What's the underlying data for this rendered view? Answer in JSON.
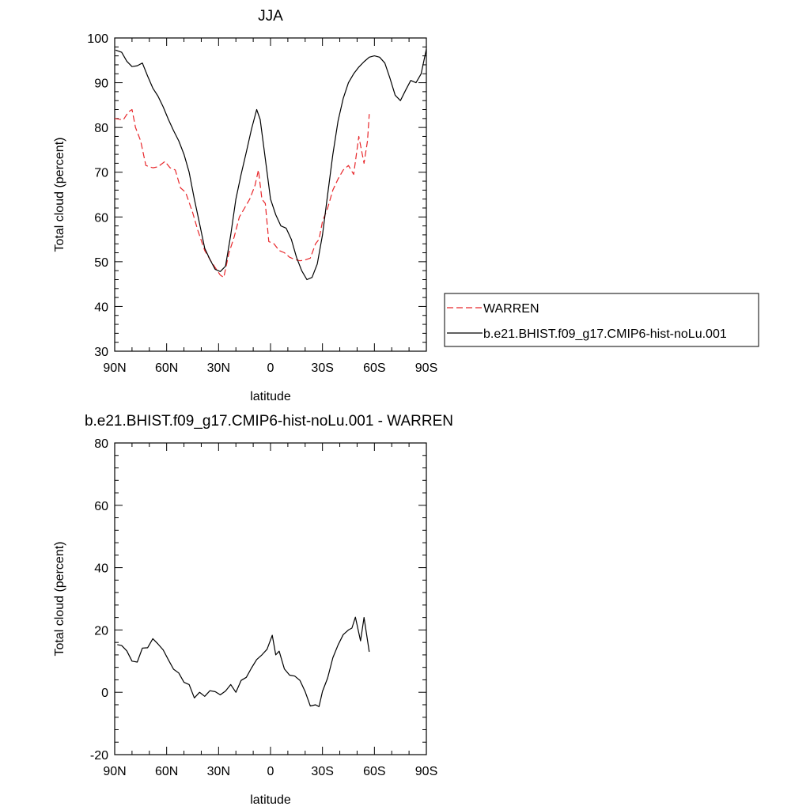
{
  "chart_data": [
    {
      "type": "line",
      "title": "JJA",
      "xlabel": "latitude",
      "ylabel": "Total cloud (percent)",
      "xlim": [
        90,
        -90
      ],
      "ylim": [
        30,
        100
      ],
      "x_ticks": [
        {
          "value": 90,
          "label": "90N"
        },
        {
          "value": 60,
          "label": "60N"
        },
        {
          "value": 30,
          "label": "30N"
        },
        {
          "value": 0,
          "label": "0"
        },
        {
          "value": -30,
          "label": "30S"
        },
        {
          "value": -60,
          "label": "60S"
        },
        {
          "value": -90,
          "label": "90S"
        }
      ],
      "y_ticks": [
        30,
        40,
        50,
        60,
        70,
        80,
        90,
        100
      ],
      "legend_position": "right",
      "series": [
        {
          "name": "WARREN",
          "color": "#e8262a",
          "style": "dashed",
          "points": [
            [
              90,
              82
            ],
            [
              85,
              81.7
            ],
            [
              82,
              83.5
            ],
            [
              80,
              84
            ],
            [
              78,
              80
            ],
            [
              75,
              77
            ],
            [
              72,
              71.5
            ],
            [
              68,
              71
            ],
            [
              65,
              71.2
            ],
            [
              61,
              72.4
            ],
            [
              58,
              71
            ],
            [
              55,
              70.5
            ],
            [
              52,
              66.5
            ],
            [
              49,
              65.5
            ],
            [
              45,
              61
            ],
            [
              42,
              57
            ],
            [
              38,
              52.5
            ],
            [
              35,
              50.5
            ],
            [
              32,
              48.7
            ],
            [
              29,
              47
            ],
            [
              27,
              46.5
            ],
            [
              24,
              52
            ],
            [
              21,
              55.5
            ],
            [
              18,
              60
            ],
            [
              15,
              62
            ],
            [
              12,
              64
            ],
            [
              9,
              67
            ],
            [
              7,
              70.5
            ],
            [
              5,
              64
            ],
            [
              3,
              63
            ],
            [
              1,
              54.5
            ],
            [
              -2,
              54
            ],
            [
              -5,
              52.5
            ],
            [
              -8,
              52
            ],
            [
              -11,
              51
            ],
            [
              -14,
              50.5
            ],
            [
              -17,
              50.2
            ],
            [
              -20,
              50.4
            ],
            [
              -23,
              50.8
            ],
            [
              -26,
              54
            ],
            [
              -28,
              55
            ],
            [
              -30,
              59
            ],
            [
              -33,
              62
            ],
            [
              -36,
              66
            ],
            [
              -39,
              68.5
            ],
            [
              -42,
              70.5
            ],
            [
              -45,
              71.5
            ],
            [
              -48,
              69.5
            ],
            [
              -51,
              78
            ],
            [
              -54,
              72
            ],
            [
              -56,
              77
            ],
            [
              -57,
              83
            ]
          ]
        },
        {
          "name": "b.e21.BHIST.f09_g17.CMIP6-hist-noLu.001",
          "color": "#000000",
          "style": "solid",
          "points": [
            [
              89.5,
              97.3
            ],
            [
              86,
              96.8
            ],
            [
              83,
              94.8
            ],
            [
              80,
              93.6
            ],
            [
              77,
              93.8
            ],
            [
              74,
              94.4
            ],
            [
              71,
              91.5
            ],
            [
              68,
              88.8
            ],
            [
              65,
              87
            ],
            [
              62,
              84.6
            ],
            [
              59,
              81.8
            ],
            [
              56,
              79.3
            ],
            [
              53,
              77
            ],
            [
              50,
              74
            ],
            [
              47,
              70
            ],
            [
              44,
              64
            ],
            [
              41,
              58.5
            ],
            [
              38,
              53
            ],
            [
              35,
              50.5
            ],
            [
              32,
              48.3
            ],
            [
              29,
              47.8
            ],
            [
              26,
              49
            ],
            [
              23,
              56
            ],
            [
              20,
              64
            ],
            [
              17,
              69.5
            ],
            [
              14,
              74.5
            ],
            [
              11,
              79.6
            ],
            [
              8,
              84
            ],
            [
              6,
              81.8
            ],
            [
              4,
              76
            ],
            [
              2,
              70
            ],
            [
              0,
              64
            ],
            [
              -3,
              60.5
            ],
            [
              -6,
              58
            ],
            [
              -9,
              57.5
            ],
            [
              -12,
              55
            ],
            [
              -15,
              51
            ],
            [
              -18,
              48
            ],
            [
              -21,
              46
            ],
            [
              -24,
              46.5
            ],
            [
              -27,
              49.5
            ],
            [
              -30,
              56
            ],
            [
              -33,
              65
            ],
            [
              -36,
              74
            ],
            [
              -39,
              81.5
            ],
            [
              -42,
              86.5
            ],
            [
              -45,
              90
            ],
            [
              -48,
              92
            ],
            [
              -51,
              93.5
            ],
            [
              -54,
              94.7
            ],
            [
              -57,
              95.7
            ],
            [
              -60,
              96
            ],
            [
              -63,
              95.7
            ],
            [
              -66,
              94.4
            ],
            [
              -69,
              91
            ],
            [
              -72,
              87.2
            ],
            [
              -75,
              86
            ],
            [
              -78,
              88.3
            ],
            [
              -81,
              90.5
            ],
            [
              -84,
              90
            ],
            [
              -87,
              92
            ],
            [
              -90,
              97.5
            ]
          ]
        }
      ]
    },
    {
      "type": "line",
      "title": "b.e21.BHIST.f09_g17.CMIP6-hist-noLu.001 - WARREN",
      "xlabel": "latitude",
      "ylabel": "Total cloud (percent)",
      "xlim": [
        90,
        -90
      ],
      "ylim": [
        -20,
        80
      ],
      "x_ticks": [
        {
          "value": 90,
          "label": "90N"
        },
        {
          "value": 60,
          "label": "60N"
        },
        {
          "value": 30,
          "label": "30N"
        },
        {
          "value": 0,
          "label": "0"
        },
        {
          "value": -30,
          "label": "30S"
        },
        {
          "value": -60,
          "label": "60S"
        },
        {
          "value": -90,
          "label": "90S"
        }
      ],
      "y_ticks": [
        -20,
        0,
        20,
        40,
        60,
        80
      ],
      "series": [
        {
          "color": "#000000",
          "style": "solid",
          "points": [
            [
              88.5,
              15.3
            ],
            [
              86,
              15
            ],
            [
              83,
              13.3
            ],
            [
              80,
              10
            ],
            [
              77,
              9.7
            ],
            [
              74,
              14.2
            ],
            [
              71,
              14.3
            ],
            [
              68,
              17.2
            ],
            [
              65,
              15.5
            ],
            [
              62,
              13.6
            ],
            [
              59,
              10.4
            ],
            [
              56,
              7.4
            ],
            [
              53,
              6.2
            ],
            [
              50,
              3.2
            ],
            [
              47,
              2.5
            ],
            [
              44,
              -1.8
            ],
            [
              41,
              0
            ],
            [
              38,
              -1.3
            ],
            [
              35,
              0.5
            ],
            [
              32,
              0.2
            ],
            [
              29,
              -0.8
            ],
            [
              26,
              0.4
            ],
            [
              23,
              2.5
            ],
            [
              20,
              0
            ],
            [
              17,
              3.8
            ],
            [
              14,
              4.8
            ],
            [
              11,
              7.8
            ],
            [
              8,
              10.5
            ],
            [
              5,
              12
            ],
            [
              2,
              13.8
            ],
            [
              -1,
              18.3
            ],
            [
              -3,
              12
            ],
            [
              -5,
              13.2
            ],
            [
              -8,
              7.5
            ],
            [
              -11,
              5.5
            ],
            [
              -14,
              5.2
            ],
            [
              -17,
              3.8
            ],
            [
              -20,
              0.2
            ],
            [
              -23,
              -4.4
            ],
            [
              -26,
              -4
            ],
            [
              -28,
              -4.6
            ],
            [
              -30,
              0.3
            ],
            [
              -33,
              4.6
            ],
            [
              -36,
              11.1
            ],
            [
              -39,
              15.2
            ],
            [
              -42,
              18.5
            ],
            [
              -45,
              20
            ],
            [
              -47,
              20.6
            ],
            [
              -49,
              24.1
            ],
            [
              -52,
              16.5
            ],
            [
              -54,
              24
            ],
            [
              -57,
              13
            ]
          ]
        }
      ]
    }
  ]
}
